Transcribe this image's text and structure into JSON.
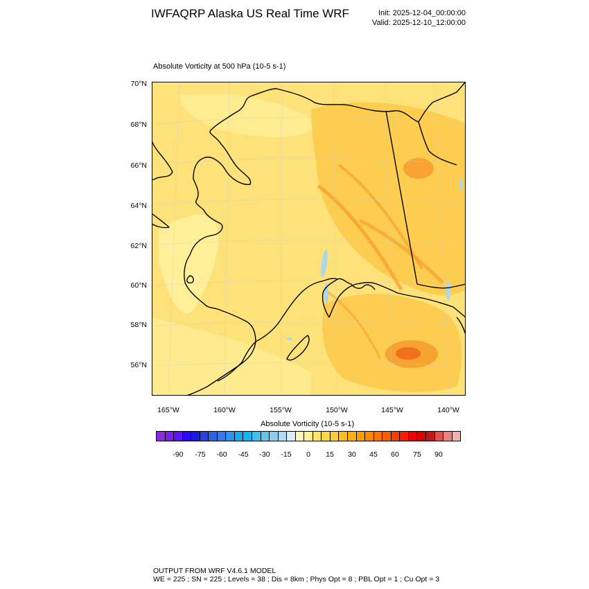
{
  "header": {
    "title": "IWFAQRP Alaska US Real Time WRF",
    "init": "Init: 2025-12-04_00:00:00",
    "valid": "Valid: 2025-12-10_12:00:00"
  },
  "map": {
    "subtitle": "Absolute Vorticity at 500 hPa   (10-5 s-1)",
    "lat_labels": [
      "70°N",
      "68°N",
      "66°N",
      "64°N",
      "62°N",
      "60°N",
      "58°N",
      "56°N"
    ],
    "lon_labels": [
      "165°W",
      "160°W",
      "155°W",
      "150°W",
      "145°W",
      "140°W"
    ],
    "colors": {
      "background_field": "#fde27a",
      "low_field": "#fff3a0",
      "moderate_field": "#fcc542",
      "high_field": "#f79a2a",
      "peak_field": "#ee6a1c",
      "negative_field": "#aad8ee",
      "coastline": "#000000"
    }
  },
  "colorbar": {
    "title": "Absolute Vorticity  (10-5 s-1)",
    "ticks": [
      "-90",
      "-75",
      "-60",
      "-45",
      "-30",
      "-15",
      "0",
      "15",
      "30",
      "45",
      "60",
      "75",
      "90"
    ],
    "colors": [
      "#8a2be2",
      "#7a1ff0",
      "#5c14f5",
      "#2a0af5",
      "#1a1ae6",
      "#2a40e0",
      "#3060e6",
      "#3a78ee",
      "#2e90f0",
      "#1aa6f0",
      "#10b6ee",
      "#3cc0ee",
      "#62c6ea",
      "#8ad0ee",
      "#b0dcf2",
      "#d6ecf6",
      "#fff6b8",
      "#fff090",
      "#ffe566",
      "#ffd840",
      "#ffcc33",
      "#ffbe20",
      "#ffae10",
      "#ff9c00",
      "#ff8800",
      "#ff7400",
      "#ff5c00",
      "#ff3c00",
      "#ff1a00",
      "#f00000",
      "#dc0000",
      "#c81414",
      "#e05050",
      "#f08080",
      "#f4b0b0"
    ]
  },
  "footer": {
    "line1": "OUTPUT FROM WRF V4.6.1 MODEL",
    "line2": "WE = 225 ; SN = 225 ; Levels = 38 ; Dis = 8km ; Phys Opt = 8 ; PBL Opt = 1 ; Cu Opt = 3"
  }
}
